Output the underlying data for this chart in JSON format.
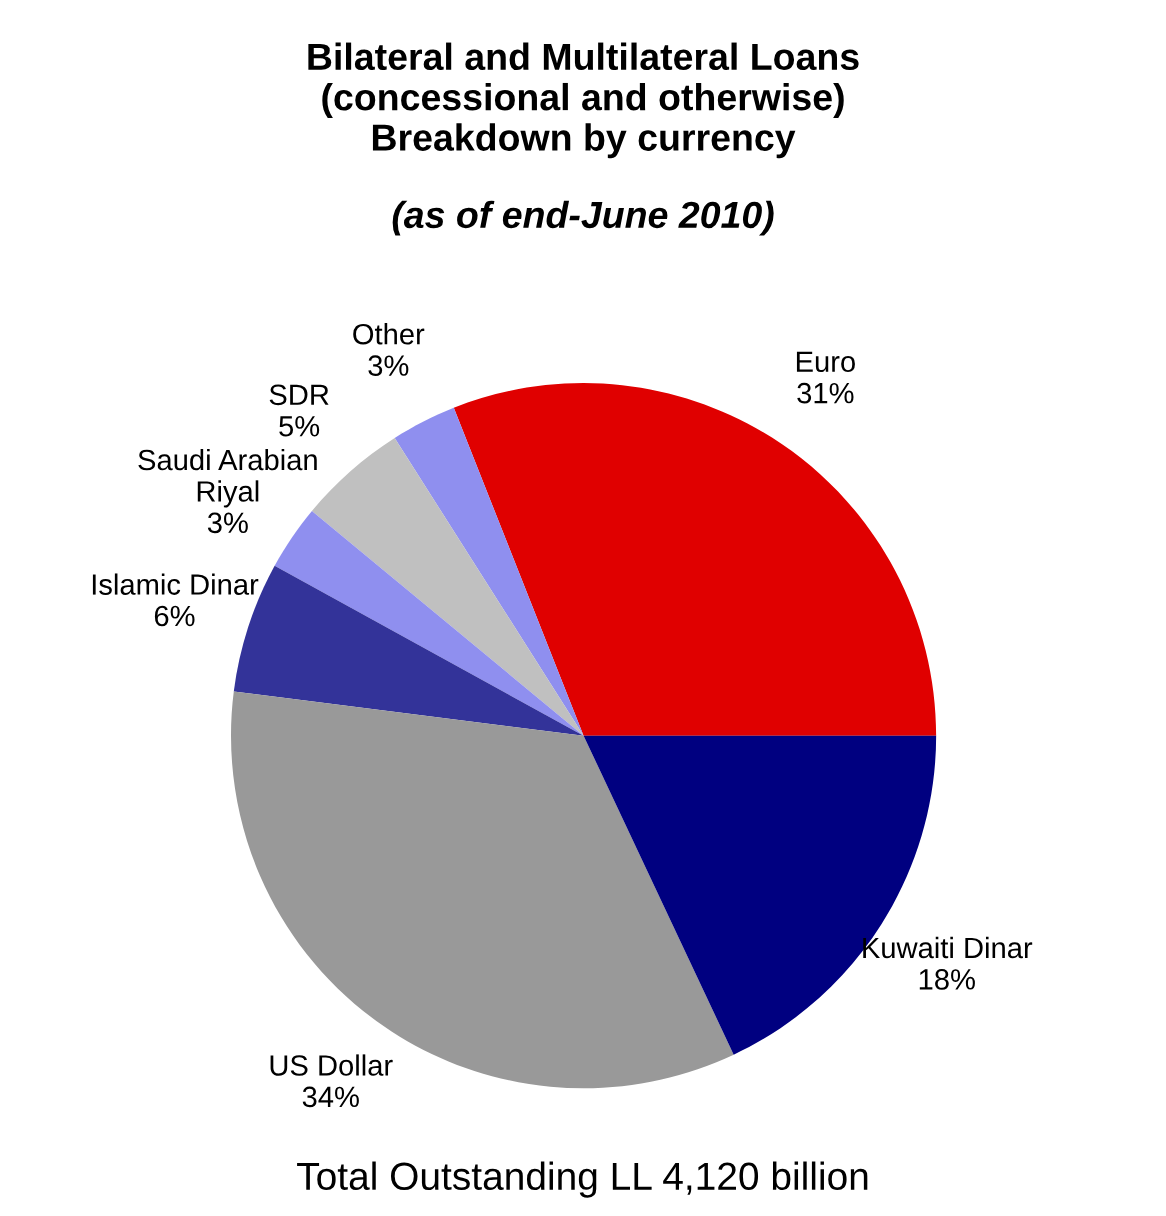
{
  "chart_data": {
    "type": "pie",
    "title": "Bilateral and Multilateral Loans\n(concessional and otherwise)\nBreakdown by currency",
    "subtitle": "(as of end-June 2010)",
    "categories": [
      "Euro",
      "Other",
      "SDR",
      "Saudi Arabian\nRiyal",
      "Islamic Dinar",
      "US Dollar",
      "Kuwaiti Dinar"
    ],
    "values": [
      31,
      3,
      5,
      3,
      6,
      34,
      18
    ],
    "value_labels": [
      "31%",
      "3%",
      "5%",
      "3%",
      "6%",
      "34%",
      "18%"
    ],
    "colors": [
      "#e00000",
      "#8f8fef",
      "#c0c0c0",
      "#8f8fef",
      "#333399",
      "#999999",
      "#000080"
    ],
    "annotations": [
      "Total Outstanding LL 4,120 billion"
    ],
    "legend": false
  }
}
